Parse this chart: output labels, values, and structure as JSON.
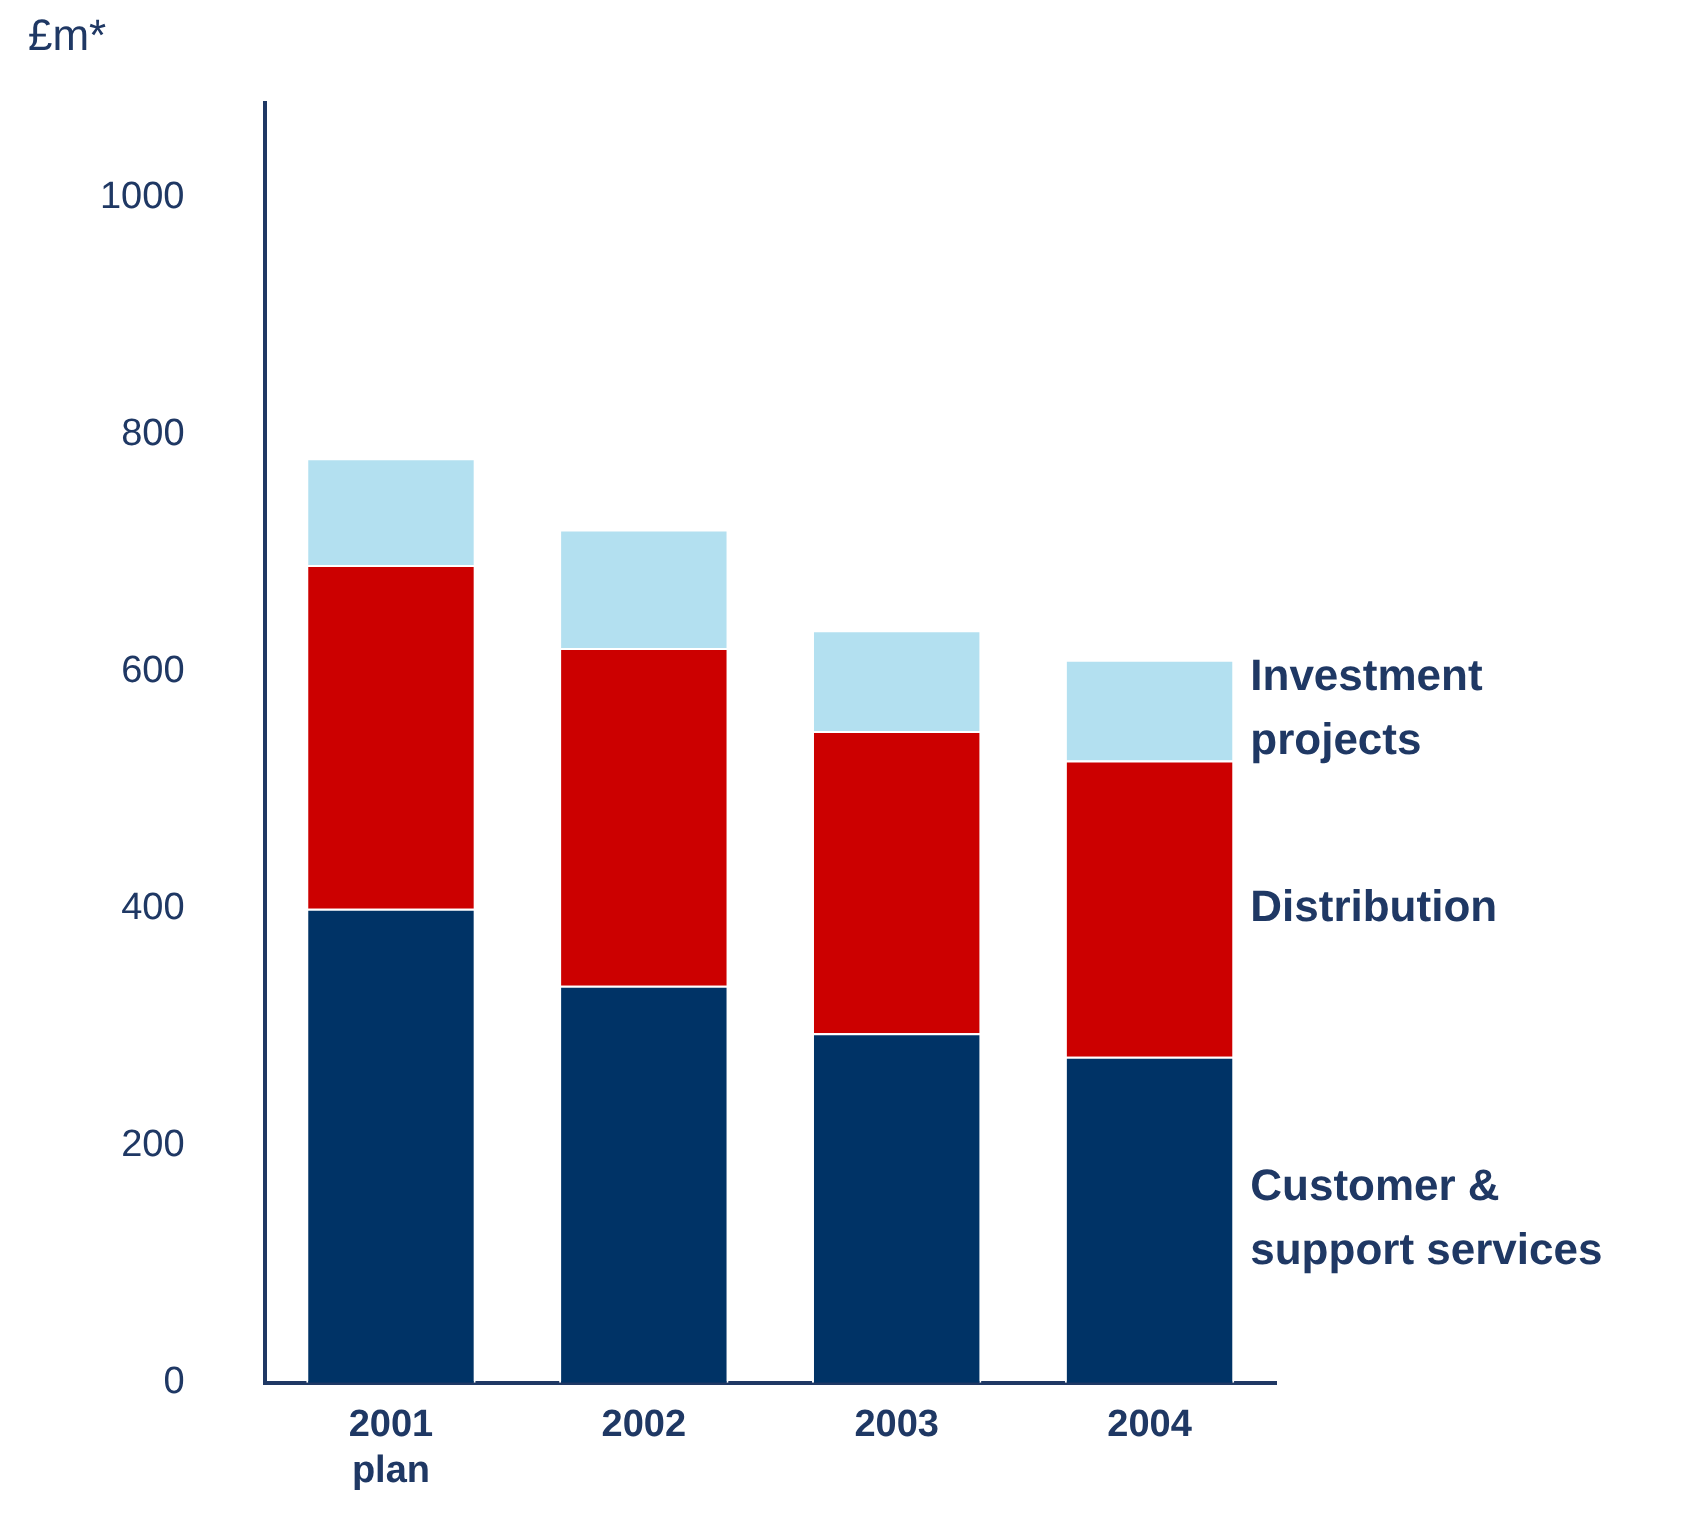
{
  "chart_data": {
    "type": "bar",
    "stacked": true,
    "ylabel": "£m*",
    "categories": [
      "2001 plan",
      "2002",
      "2003",
      "2004"
    ],
    "series": [
      {
        "name": "Customer & support services",
        "color": "#003366",
        "values": [
          400,
          335,
          295,
          275
        ]
      },
      {
        "name": "Distribution",
        "color": "#cc0000",
        "values": [
          290,
          285,
          255,
          250
        ]
      },
      {
        "name": "Investment projects",
        "color": "#b3e0f0",
        "values": [
          90,
          100,
          85,
          85
        ]
      }
    ],
    "ylim": [
      0,
      1080
    ],
    "yticks": [
      0,
      200,
      400,
      600,
      800,
      1000
    ],
    "grid": false,
    "legend": false
  }
}
